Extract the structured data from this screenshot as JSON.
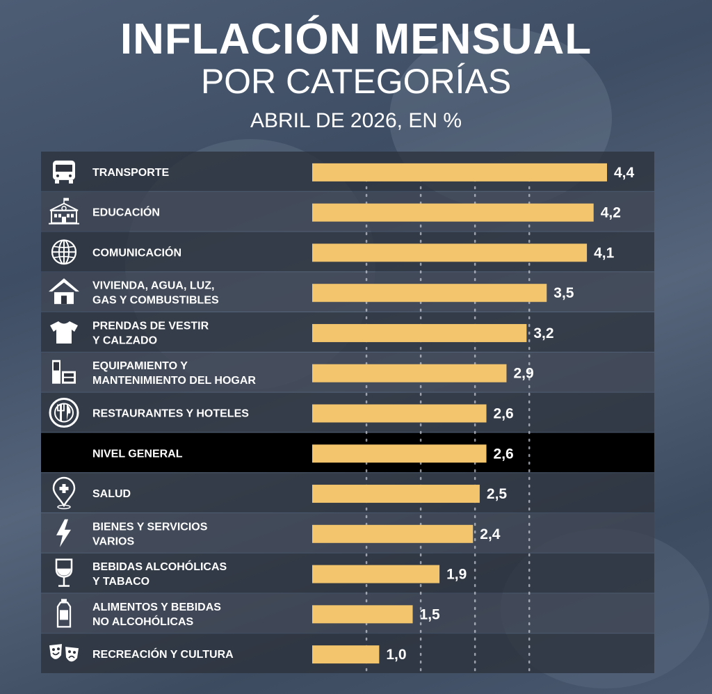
{
  "header": {
    "title": "INFLACIÓN MENSUAL",
    "subtitle": "POR CATEGORÍAS",
    "period": "ABRIL DE 2026, EN %"
  },
  "colors": {
    "bar": "#f3c56c",
    "row_light": "#3f4552",
    "row_dark": "#2d323c",
    "row_highlight": "#000000",
    "text": "#ffffff"
  },
  "chart_data": {
    "type": "bar",
    "orientation": "horizontal",
    "title": "INFLACIÓN MENSUAL POR CATEGORÍAS",
    "subtitle": "ABRIL DE 2026, EN %",
    "xlim": [
      0,
      4.4
    ],
    "grid": true,
    "categories": [
      {
        "label": [
          "TRANSPORTE"
        ],
        "icon": "bus-icon",
        "value": 4.4,
        "value_label": "4,4"
      },
      {
        "label": [
          "EDUCACIÓN"
        ],
        "icon": "school-icon",
        "value": 4.2,
        "value_label": "4,2"
      },
      {
        "label": [
          "COMUNICACIÓN"
        ],
        "icon": "globe-icon",
        "value": 4.1,
        "value_label": "4,1"
      },
      {
        "label": [
          "VIVIENDA, AGUA, LUZ,",
          "GAS Y COMBUSTIBLES"
        ],
        "icon": "house-icon",
        "value": 3.5,
        "value_label": "3,5"
      },
      {
        "label": [
          "PRENDAS DE VESTIR",
          "Y CALZADO"
        ],
        "icon": "tshirt-icon",
        "value": 3.2,
        "value_label": "3,2"
      },
      {
        "label": [
          "EQUIPAMIENTO Y",
          "MANTENIMIENTO DEL HOGAR"
        ],
        "icon": "furniture-icon",
        "value": 2.9,
        "value_label": "2,9"
      },
      {
        "label": [
          "RESTAURANTES Y HOTELES"
        ],
        "icon": "plate-cutlery-icon",
        "value": 2.6,
        "value_label": "2,6"
      },
      {
        "label": [
          "NIVEL GENERAL"
        ],
        "icon": "",
        "value": 2.6,
        "value_label": "2,6",
        "highlight": true
      },
      {
        "label": [
          "SALUD"
        ],
        "icon": "health-pin-icon",
        "value": 2.5,
        "value_label": "2,5"
      },
      {
        "label": [
          "BIENES Y SERVICIOS",
          "VARIOS"
        ],
        "icon": "lightning-icon",
        "value": 2.4,
        "value_label": "2,4"
      },
      {
        "label": [
          "BEBIDAS ALCOHÓLICAS",
          "Y TABACO"
        ],
        "icon": "wine-glass-icon",
        "value": 1.9,
        "value_label": "1,9"
      },
      {
        "label": [
          "ALIMENTOS Y BEBIDAS",
          "NO ALCOHÓLICAS"
        ],
        "icon": "bottle-icon",
        "value": 1.5,
        "value_label": "1,5"
      },
      {
        "label": [
          "RECREACIÓN Y CULTURA"
        ],
        "icon": "theater-masks-icon",
        "value": 1.0,
        "value_label": "1,0"
      }
    ]
  }
}
